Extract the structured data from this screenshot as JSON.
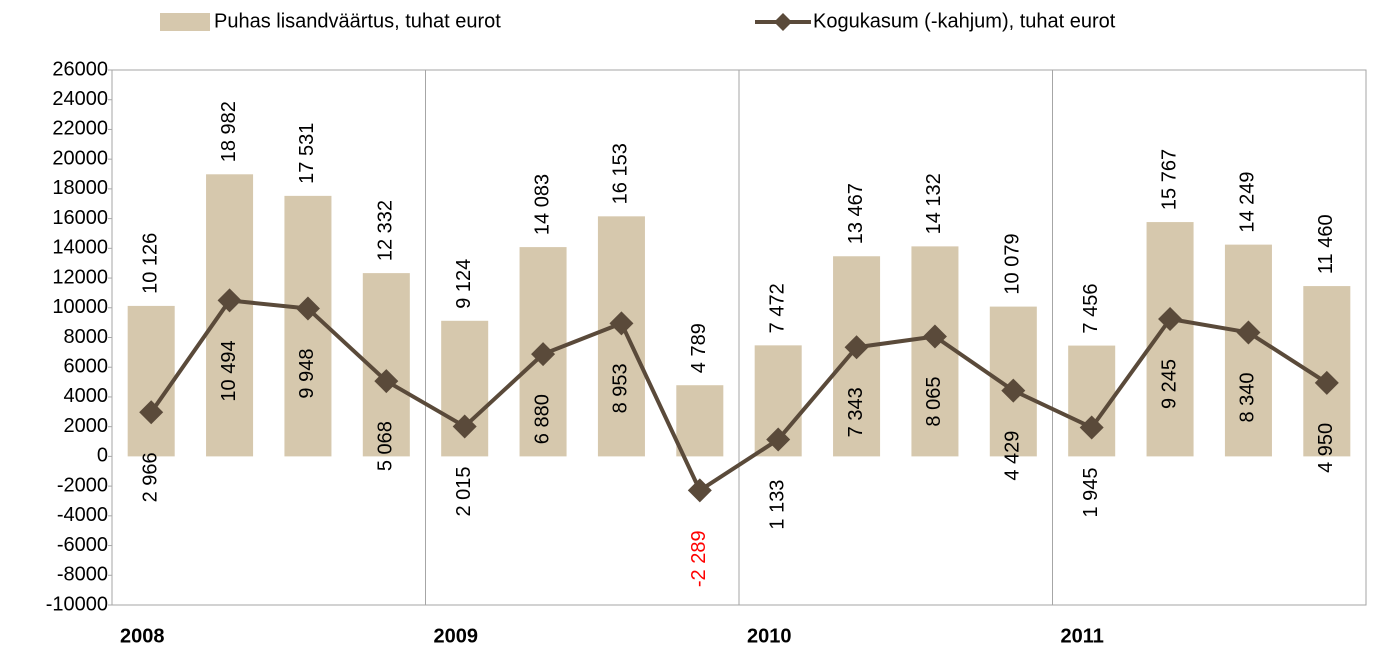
{
  "chart_data": {
    "type": "bar-line",
    "categories": [
      "2008",
      null,
      null,
      null,
      "2009",
      null,
      null,
      null,
      "2010",
      null,
      null,
      null,
      "2011",
      null,
      null,
      null
    ],
    "group_size": 4,
    "series": [
      {
        "name": "Puhas lisandväärtus, tuhat eurot",
        "type": "bar",
        "color": "#d6c8ad",
        "values": [
          10126,
          18982,
          17531,
          12332,
          9124,
          14083,
          16153,
          4789,
          7472,
          13467,
          14132,
          10079,
          7456,
          15767,
          14249,
          11460
        ],
        "value_labels": [
          "10 126",
          "18 982",
          "17 531",
          "12 332",
          "9 124",
          "14 083",
          "16 153",
          "4 789",
          "7 472",
          "13 467",
          "14 132",
          "10 079",
          "7 456",
          "15 767",
          "14 249",
          "11 460"
        ]
      },
      {
        "name": "Kogukasum (-kahjum), tuhat eurot",
        "type": "line",
        "color": "#5a4a3a",
        "values": [
          2966,
          10494,
          9948,
          5068,
          2015,
          6880,
          8953,
          -2289,
          1133,
          7343,
          8065,
          4429,
          1945,
          9245,
          8340,
          4950
        ],
        "value_labels": [
          "2 966",
          "10 494",
          "9 948",
          "5 068",
          "2 015",
          "6 880",
          "8 953",
          "-2 289",
          "1 133",
          "7 343",
          "8 065",
          "4 429",
          "1 945",
          "9 245",
          "8 340",
          "4 950"
        ]
      }
    ],
    "negative_label_color": "#ff0000",
    "ylim": [
      -10000,
      26000
    ],
    "yticks": [
      -10000,
      -8000,
      -6000,
      -4000,
      -2000,
      0,
      2000,
      4000,
      6000,
      8000,
      10000,
      12000,
      14000,
      16000,
      18000,
      20000,
      22000,
      24000,
      26000
    ],
    "grid": false,
    "legend": "top"
  }
}
